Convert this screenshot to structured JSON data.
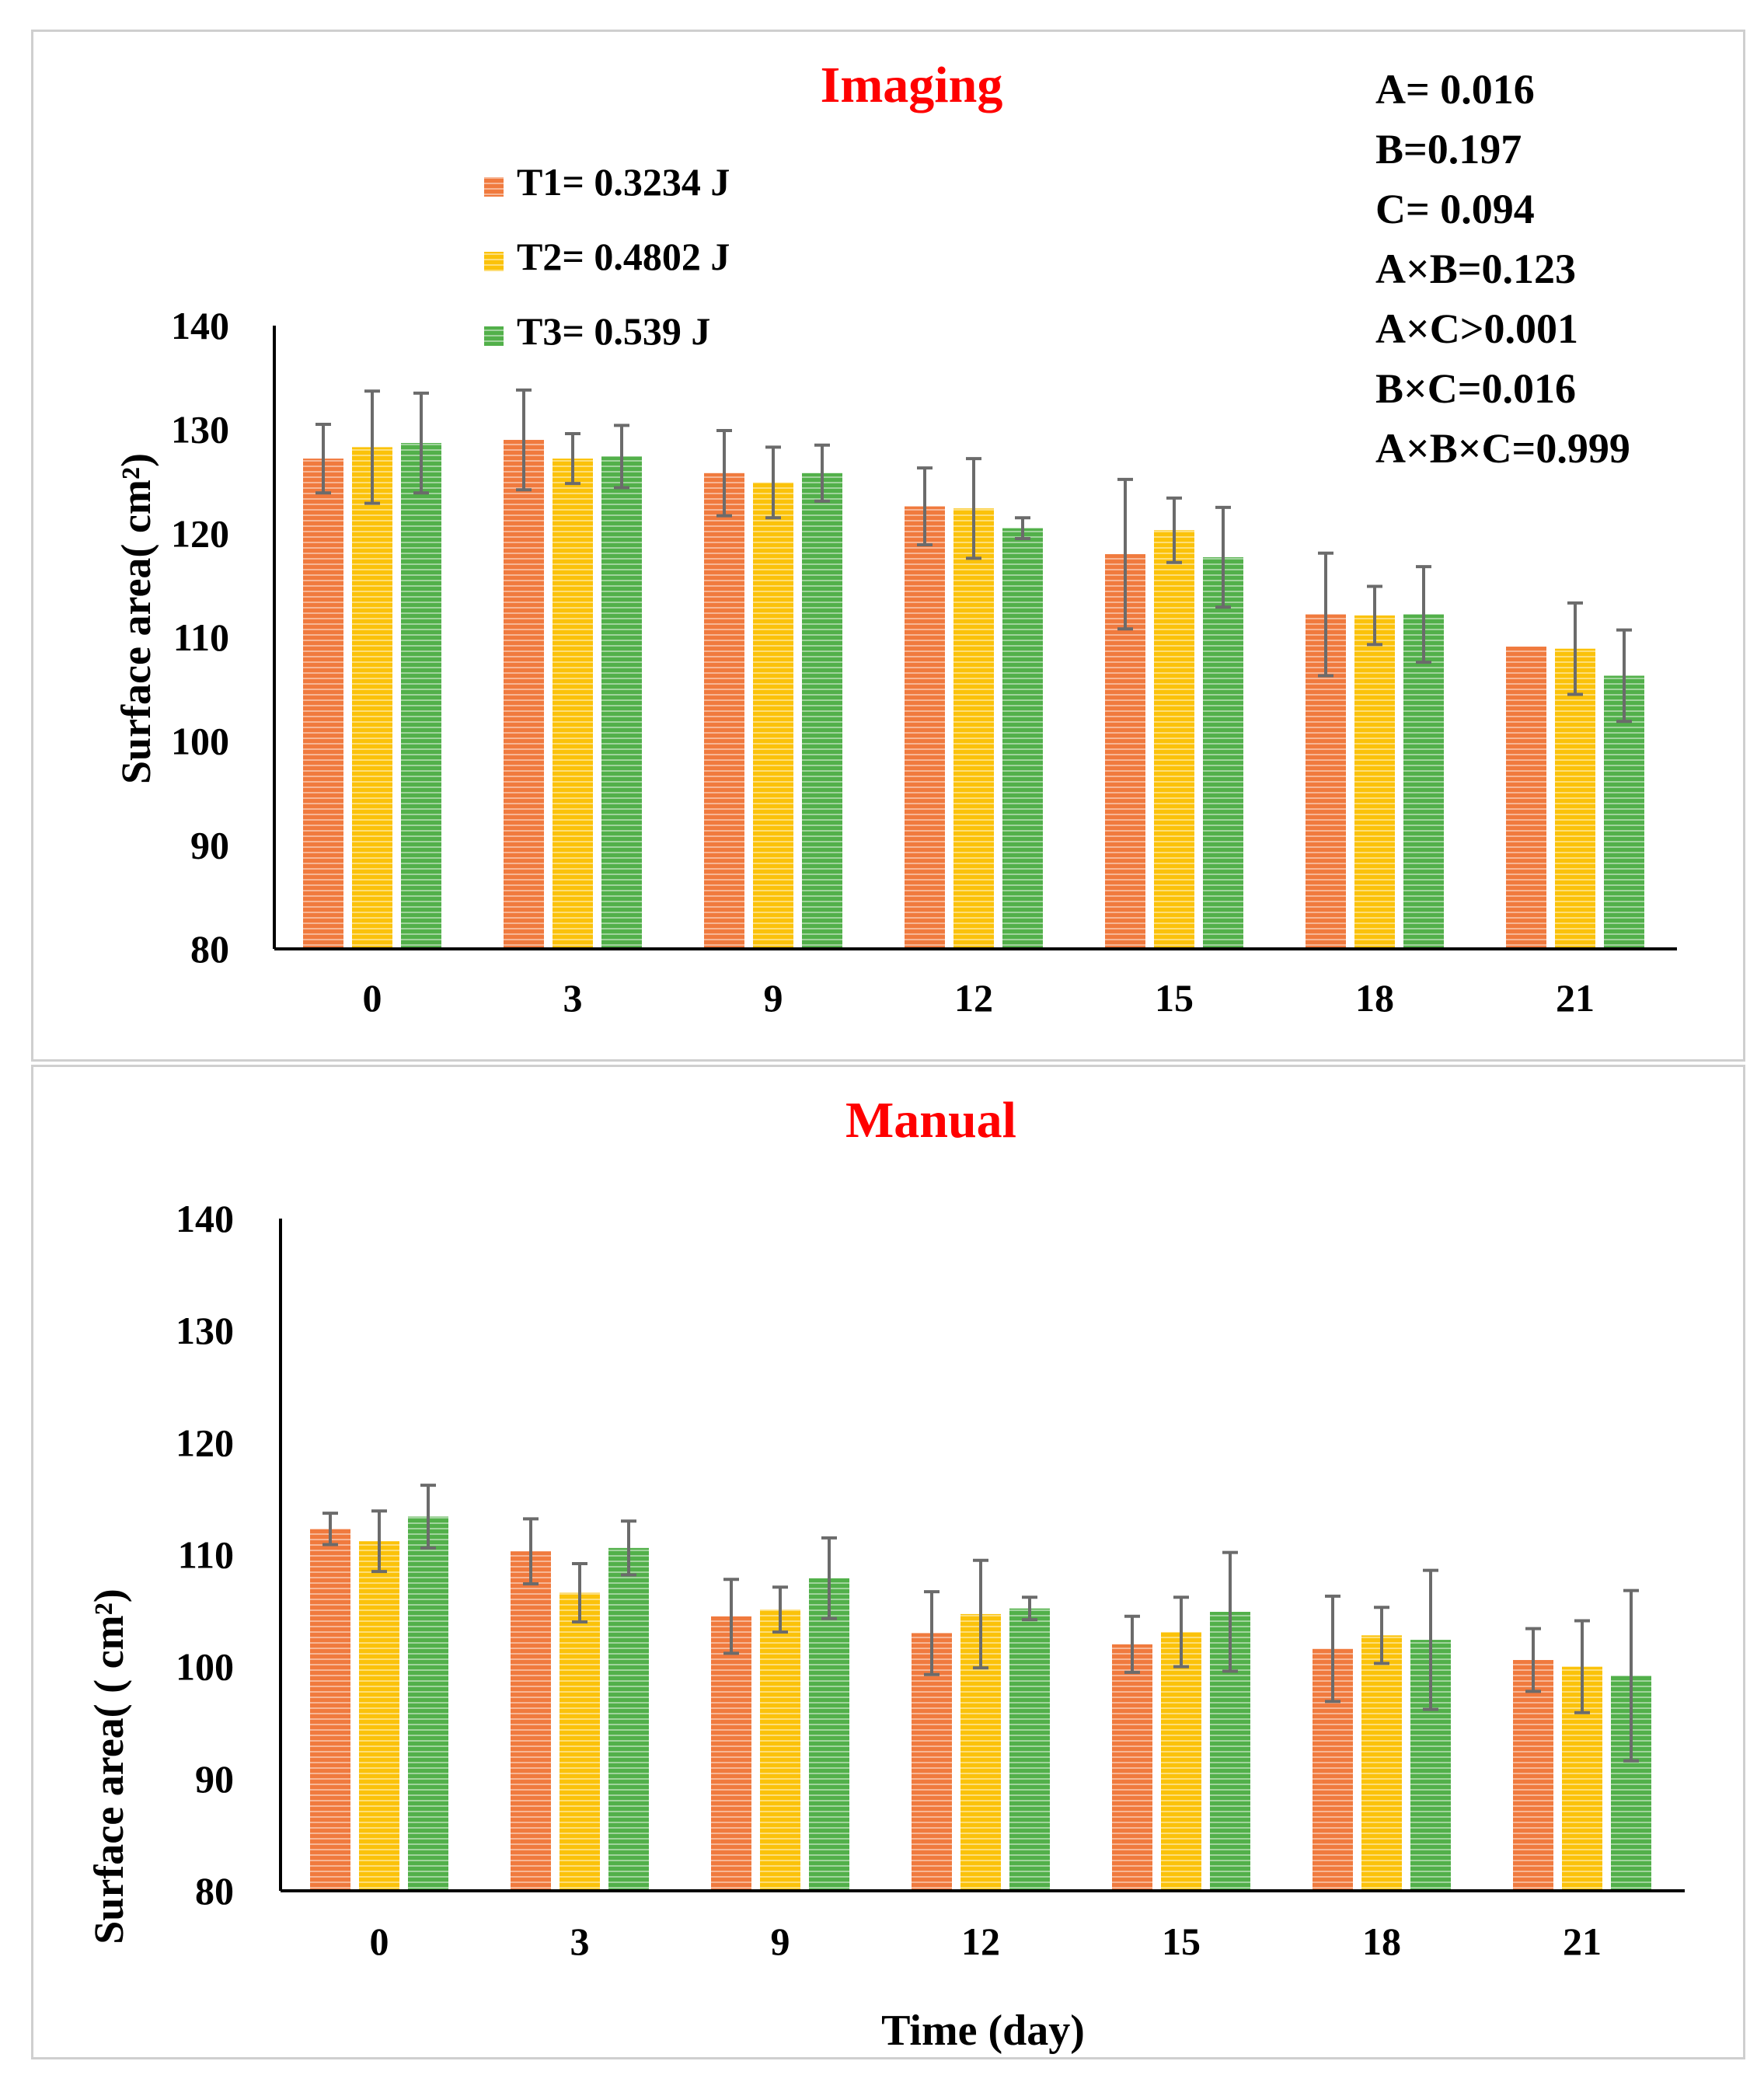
{
  "colors": {
    "T1": "#f07a3e",
    "T2": "#fbc20a",
    "T3": "#52b04a",
    "title": "#ff0000",
    "error_bar": "#6b6b6b"
  },
  "legend": [
    {
      "label": "T1= 0.3234 J"
    },
    {
      "label": "T2= 0.4802 J"
    },
    {
      "label": "T3= 0.539 J"
    }
  ],
  "stats": [
    "A= 0.016",
    "B=0.197",
    "C= 0.094",
    "A×B=0.123",
    "A×C>0.001",
    "B×C=0.016",
    "A×B×C=0.999"
  ],
  "chart_data": [
    {
      "type": "bar",
      "title": "Imaging",
      "xlabel": "",
      "ylabel": "Surface area( cm²)",
      "ylim": [
        80,
        140
      ],
      "yticks": [
        "80",
        "90",
        "100",
        "110",
        "120",
        "130",
        "140"
      ],
      "categories": [
        "0",
        "3",
        "9",
        "12",
        "15",
        "18",
        "21"
      ],
      "series": [
        {
          "name": "T1= 0.3234 J",
          "values": [
            127.2,
            129.0,
            125.8,
            122.6,
            118.0,
            112.2,
            109.1
          ],
          "errors": [
            3.3,
            4.8,
            4.1,
            3.7,
            7.2,
            5.9,
            0
          ]
        },
        {
          "name": "T2= 0.4802 J",
          "values": [
            128.3,
            127.2,
            124.9,
            122.4,
            120.3,
            112.1,
            108.9
          ],
          "errors": [
            5.4,
            2.4,
            3.4,
            4.8,
            3.1,
            2.8,
            4.4
          ]
        },
        {
          "name": "T3= 0.539 J",
          "values": [
            128.7,
            127.4,
            125.8,
            120.5,
            117.7,
            112.2,
            106.3
          ],
          "errors": [
            4.8,
            3.0,
            2.7,
            1.0,
            4.8,
            4.6,
            4.4
          ]
        }
      ]
    },
    {
      "type": "bar",
      "title": "Manual",
      "xlabel": "Time (day)",
      "ylabel": "Surface area( ( cm²)",
      "ylim": [
        80,
        140
      ],
      "yticks": [
        "80",
        "90",
        "100",
        "110",
        "120",
        "130",
        "140"
      ],
      "categories": [
        "0",
        "3",
        "9",
        "12",
        "15",
        "18",
        "21"
      ],
      "series": [
        {
          "name": "T1= 0.3234 J",
          "values": [
            112.3,
            110.3,
            104.5,
            103.0,
            102.0,
            101.6,
            100.6
          ],
          "errors": [
            1.4,
            2.9,
            3.3,
            3.7,
            2.5,
            4.7,
            2.8
          ]
        },
        {
          "name": "T2= 0.4802 J",
          "values": [
            111.2,
            106.6,
            105.1,
            104.7,
            103.1,
            102.8,
            100.0
          ],
          "errors": [
            2.7,
            2.6,
            2.0,
            4.8,
            3.1,
            2.5,
            4.1
          ]
        },
        {
          "name": "T3= 0.539 J",
          "values": [
            113.4,
            110.6,
            107.9,
            105.2,
            104.9,
            102.4,
            99.2
          ],
          "errors": [
            2.8,
            2.4,
            3.6,
            1.0,
            5.3,
            6.2,
            7.6
          ]
        }
      ]
    }
  ]
}
